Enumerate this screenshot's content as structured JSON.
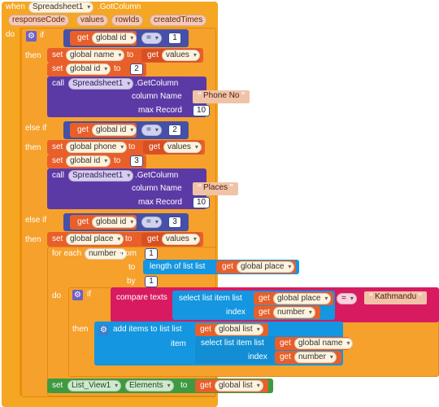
{
  "event": {
    "when": "when",
    "component": "Spreadsheet1",
    "method": ".GotColumn",
    "params": [
      "responseCode",
      "values",
      "rowIds",
      "createdTimes"
    ],
    "do": "do"
  },
  "kw": {
    "if": "if",
    "then": "then",
    "else_if": "else if",
    "get": "get",
    "set": "set",
    "to": "to",
    "call": "call",
    "eq": "=",
    "for_each": "for each",
    "from": "from",
    "by": "by",
    "do": "do",
    "column_name": "column Name",
    "max_record": "max Record",
    "length_of_list": "length of list  list",
    "compare_texts": "compare texts",
    "select_list_item": "select list item  list",
    "index": "index",
    "add_items": "add items to list  list",
    "item": "item",
    "get_column": ".GetColumn"
  },
  "vars": {
    "global_id": "global id",
    "global_name": "global name",
    "global_phone": "global phone",
    "global_place": "global place",
    "global_list": "global list",
    "values": "values",
    "number": "number"
  },
  "branch1": {
    "compare_value": "1",
    "set_id_value": "2",
    "column_name": "Phone No",
    "max_record": "10"
  },
  "branch2": {
    "compare_value": "2",
    "set_id_value": "3",
    "column_name": "Places",
    "max_record": "10"
  },
  "branch3": {
    "compare_value": "3",
    "from": "1",
    "by": "1",
    "compare_text": "Kathmandu"
  },
  "final_set": {
    "component": "List_View1",
    "property": "Elements"
  },
  "colors": {
    "event_orange": "#f5a623",
    "control_orange": "#f6a12b",
    "variable_red": "#e85f2a",
    "procedure_purple": "#5c3aa6",
    "math_indigo": "#4650a8",
    "list_blue": "#1496e0",
    "text_pink": "#d81b60",
    "component_green": "#3d9a40"
  },
  "icons": {
    "mutator": "gear-icon",
    "dropdown": "chevron-down-icon"
  }
}
